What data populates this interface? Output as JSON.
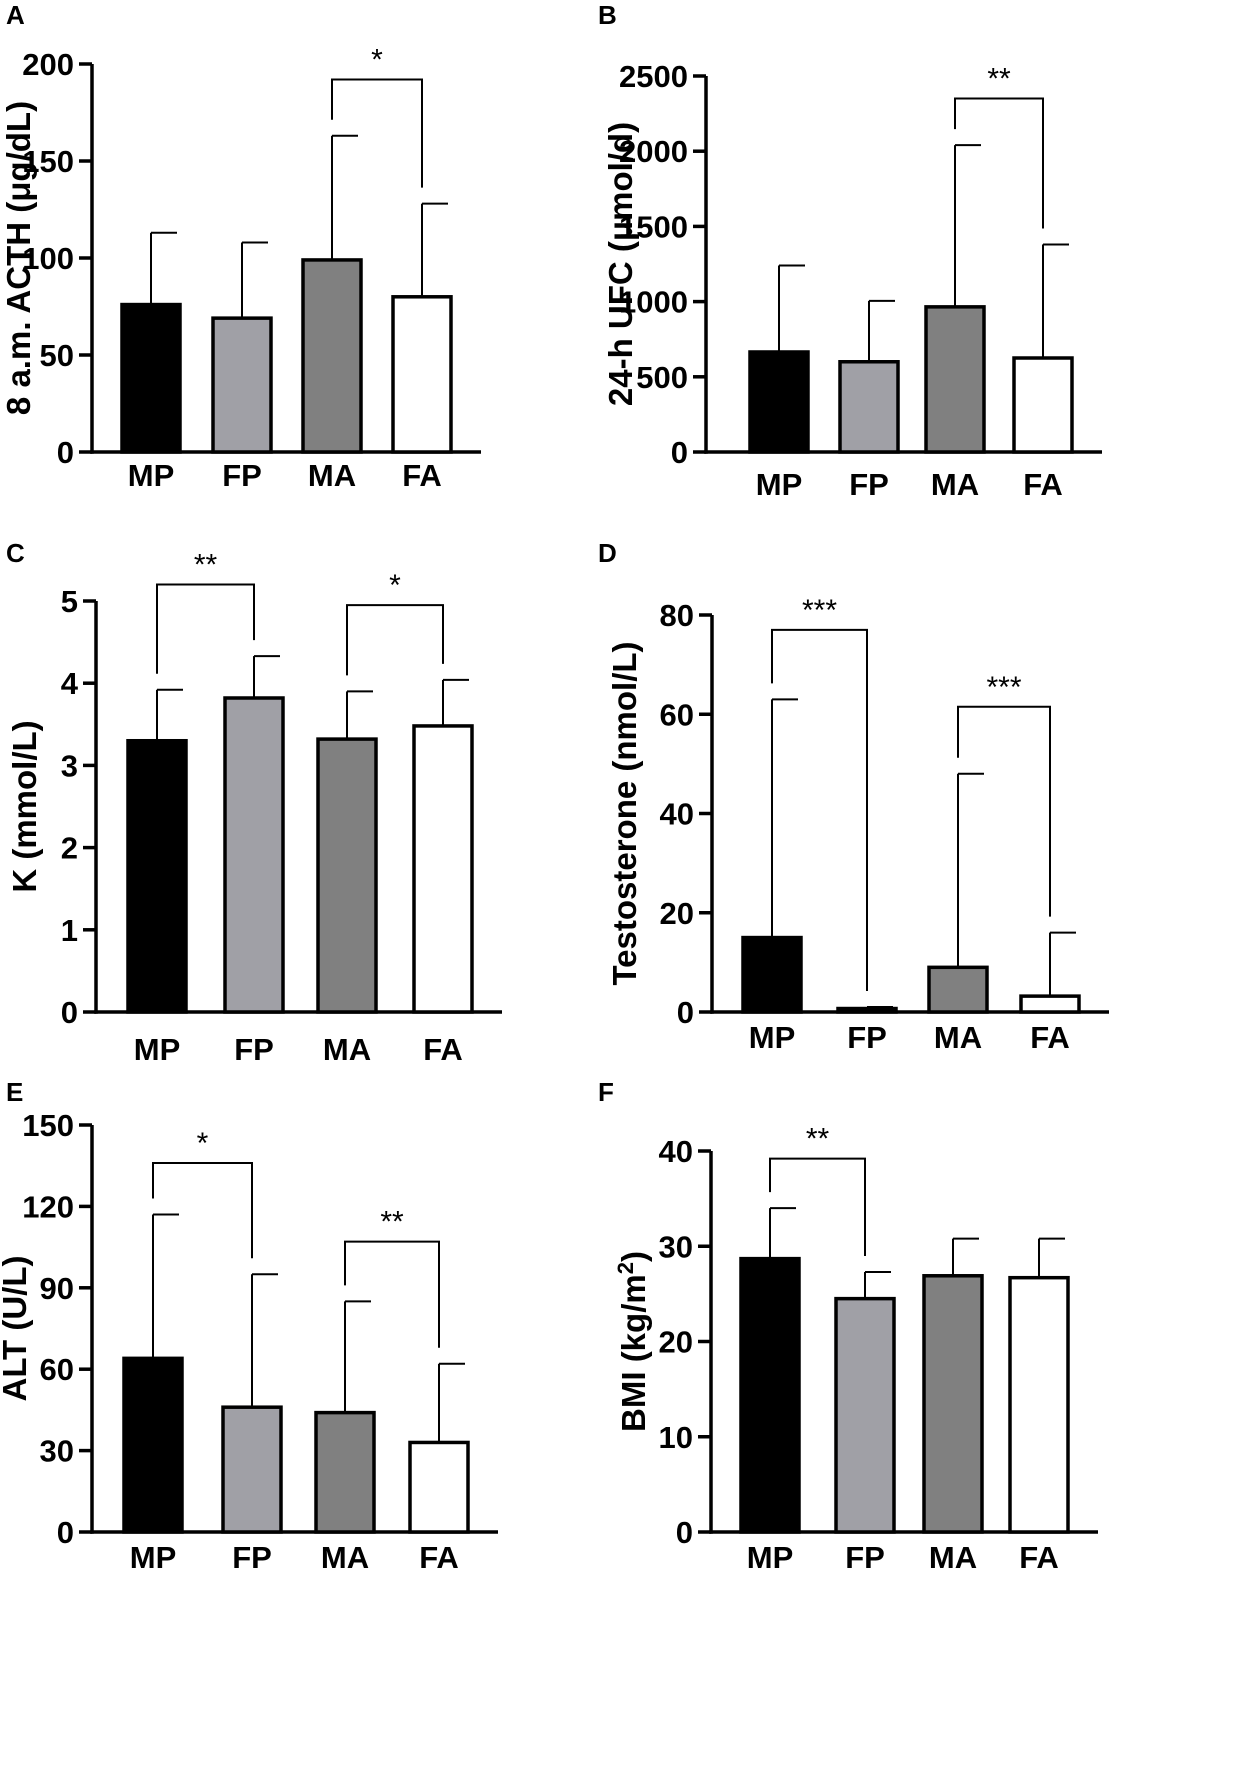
{
  "colors": {
    "MP": "#000000",
    "FP": "#a0a0a6",
    "MA": "#808080",
    "FA": "#ffffff"
  },
  "chart_data": [
    {
      "panel": "A",
      "type": "bar",
      "ylabel": "8 a.m. ACTH (μg/dL)",
      "ylim": [
        0,
        200
      ],
      "yticks": [
        0,
        50,
        100,
        150,
        200
      ],
      "categories": [
        "MP",
        "FP",
        "MA",
        "FA"
      ],
      "values": [
        76,
        69,
        99,
        80
      ],
      "error_upper": [
        113,
        108,
        163,
        128
      ],
      "significance": [
        {
          "from": 2,
          "to": 3,
          "label": "*",
          "y": 192
        }
      ]
    },
    {
      "panel": "B",
      "type": "bar",
      "ylabel": "24-h UFC (μmol/d)",
      "ylim": [
        0,
        2500
      ],
      "yticks": [
        0,
        500,
        1000,
        1500,
        2000,
        2500
      ],
      "categories": [
        "MP",
        "FP",
        "MA",
        "FA"
      ],
      "values": [
        665,
        600,
        965,
        625
      ],
      "error_upper": [
        1240,
        1005,
        2040,
        1380
      ],
      "significance": [
        {
          "from": 2,
          "to": 3,
          "label": "**",
          "y": 2350
        }
      ]
    },
    {
      "panel": "C",
      "type": "bar",
      "ylabel": "K (mmol/L)",
      "ylim": [
        0,
        5
      ],
      "yticks": [
        0,
        1,
        2,
        3,
        4,
        5
      ],
      "categories": [
        "MP",
        "FP",
        "MA",
        "FA"
      ],
      "values": [
        3.3,
        3.82,
        3.32,
        3.48
      ],
      "error_upper": [
        3.92,
        4.33,
        3.9,
        4.04
      ],
      "significance": [
        {
          "from": 0,
          "to": 1,
          "label": "**",
          "y": 5.2
        },
        {
          "from": 2,
          "to": 3,
          "label": "*",
          "y": 4.95
        }
      ]
    },
    {
      "panel": "D",
      "type": "bar",
      "ylabel": "Testosterone (nmol/L)",
      "ylim": [
        0,
        80
      ],
      "yticks": [
        0,
        20,
        40,
        60,
        80
      ],
      "categories": [
        "MP",
        "FP",
        "MA",
        "FA"
      ],
      "values": [
        15,
        0.7,
        9,
        3.2
      ],
      "error_upper": [
        63,
        1.0,
        48,
        16
      ],
      "significance": [
        {
          "from": 0,
          "to": 1,
          "label": "***",
          "y": 77
        },
        {
          "from": 2,
          "to": 3,
          "label": "***",
          "y": 61.5
        }
      ]
    },
    {
      "panel": "E",
      "type": "bar",
      "ylabel": "ALT (U/L)",
      "ylim": [
        0,
        150
      ],
      "yticks": [
        0,
        30,
        60,
        90,
        120,
        150
      ],
      "categories": [
        "MP",
        "FP",
        "MA",
        "FA"
      ],
      "values": [
        64,
        46,
        44,
        33
      ],
      "error_upper": [
        117,
        95,
        85,
        62
      ],
      "significance": [
        {
          "from": 0,
          "to": 1,
          "label": "*",
          "y": 136
        },
        {
          "from": 2,
          "to": 3,
          "label": "**",
          "y": 107
        }
      ]
    },
    {
      "panel": "F",
      "type": "bar",
      "ylabel": "BMI (kg/m²)",
      "ylim": [
        0,
        40
      ],
      "yticks": [
        0,
        10,
        20,
        30,
        40
      ],
      "categories": [
        "MP",
        "FP",
        "MA",
        "FA"
      ],
      "values": [
        28.7,
        24.5,
        26.9,
        26.7
      ],
      "error_upper": [
        34,
        27.3,
        30.8,
        30.8
      ],
      "significance": [
        {
          "from": 0,
          "to": 1,
          "label": "**",
          "y": 39.2
        }
      ]
    }
  ]
}
